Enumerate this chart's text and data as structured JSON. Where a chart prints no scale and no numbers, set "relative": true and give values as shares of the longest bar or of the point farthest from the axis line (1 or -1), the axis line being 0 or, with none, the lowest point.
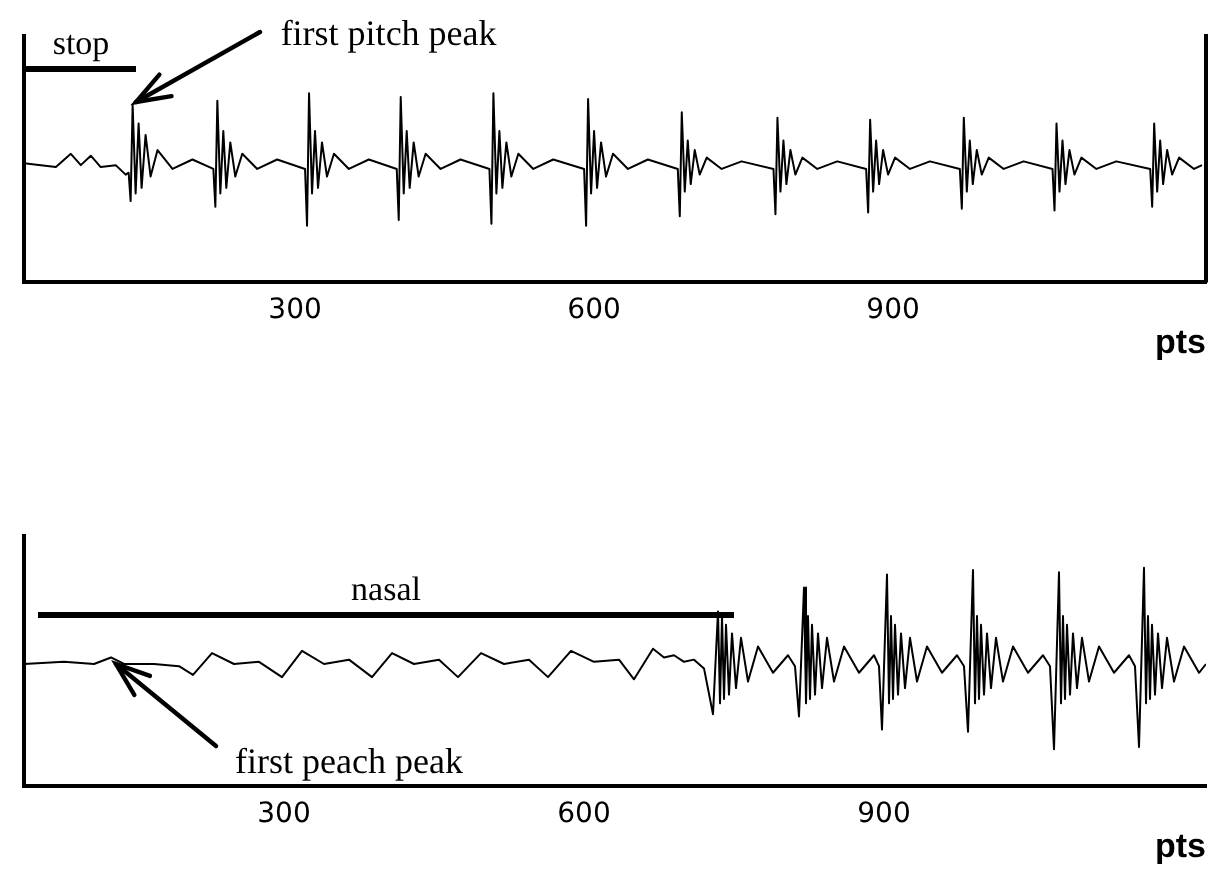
{
  "chart_data": [
    {
      "type": "line",
      "xlabel": "pts",
      "relative": true,
      "xlim": [
        28,
        1214
      ],
      "xticks": [
        300,
        600,
        900
      ],
      "annotations": [
        "stop",
        {
          "text": "first pitch peak",
          "x": 137,
          "y": 0.94
        }
      ],
      "x": [
        28,
        45,
        60,
        75,
        85,
        95,
        105,
        120,
        130,
        133,
        135,
        137,
        140,
        143,
        146,
        150,
        155,
        162,
        177,
        197,
        218,
        220,
        222,
        225,
        228,
        231,
        235,
        240,
        247,
        262,
        282,
        310,
        312,
        314,
        317,
        320,
        323,
        327,
        332,
        339,
        354,
        374,
        402,
        404,
        406,
        409,
        412,
        415,
        419,
        424,
        431,
        446,
        466,
        495,
        497,
        499,
        502,
        505,
        508,
        512,
        517,
        524,
        539,
        559,
        590,
        592,
        594,
        597,
        600,
        603,
        607,
        612,
        619,
        634,
        654,
        684,
        686,
        688,
        691,
        694,
        697,
        701,
        706,
        713,
        728,
        748,
        780,
        782,
        784,
        787,
        790,
        793,
        797,
        802,
        809,
        824,
        844,
        873,
        875,
        877,
        880,
        883,
        886,
        890,
        895,
        902,
        917,
        937,
        967,
        969,
        971,
        974,
        977,
        980,
        984,
        989,
        996,
        1011,
        1031,
        1060,
        1062,
        1064,
        1067,
        1070,
        1073,
        1077,
        1082,
        1089,
        1104,
        1124,
        1158,
        1160,
        1162,
        1165,
        1168,
        1171,
        1175,
        1180,
        1187,
        1202,
        1210
      ],
      "series": [
        {
          "color": "#000000",
          "values": [
            0.63,
            0.62,
            0.61,
            0.68,
            0.62,
            0.67,
            0.61,
            0.62,
            0.57,
            0.58,
            0.43,
            0.94,
            0.47,
            0.84,
            0.5,
            0.78,
            0.56,
            0.7,
            0.6,
            0.65,
            0.6,
            0.4,
            0.96,
            0.47,
            0.8,
            0.5,
            0.74,
            0.56,
            0.68,
            0.6,
            0.65,
            0.6,
            0.3,
            1.0,
            0.47,
            0.8,
            0.5,
            0.74,
            0.56,
            0.68,
            0.6,
            0.65,
            0.6,
            0.33,
            0.98,
            0.47,
            0.8,
            0.5,
            0.74,
            0.56,
            0.68,
            0.6,
            0.65,
            0.6,
            0.31,
            1.0,
            0.47,
            0.8,
            0.5,
            0.74,
            0.56,
            0.68,
            0.6,
            0.65,
            0.6,
            0.3,
            0.97,
            0.47,
            0.8,
            0.5,
            0.74,
            0.56,
            0.68,
            0.6,
            0.65,
            0.6,
            0.35,
            0.9,
            0.48,
            0.75,
            0.52,
            0.7,
            0.57,
            0.66,
            0.6,
            0.64,
            0.6,
            0.36,
            0.87,
            0.48,
            0.75,
            0.52,
            0.7,
            0.57,
            0.66,
            0.6,
            0.64,
            0.6,
            0.37,
            0.86,
            0.48,
            0.75,
            0.52,
            0.7,
            0.57,
            0.66,
            0.6,
            0.64,
            0.6,
            0.39,
            0.87,
            0.48,
            0.75,
            0.52,
            0.7,
            0.57,
            0.66,
            0.6,
            0.64,
            0.6,
            0.38,
            0.84,
            0.48,
            0.75,
            0.52,
            0.7,
            0.57,
            0.66,
            0.6,
            0.64,
            0.6,
            0.4,
            0.84,
            0.48,
            0.75,
            0.52,
            0.7,
            0.57,
            0.66,
            0.6,
            0.62
          ]
        }
      ]
    },
    {
      "type": "line",
      "xlabel": "pts",
      "relative": true,
      "xlim": [
        40,
        1222
      ],
      "xticks": [
        300,
        600,
        900
      ],
      "annotations": [
        "nasal",
        {
          "text": "first peach peak",
          "x": 127,
          "y": 0.59
        }
      ],
      "x": [
        40,
        80,
        110,
        127,
        140,
        170,
        195,
        209,
        228,
        250,
        275,
        298,
        318,
        340,
        365,
        388,
        408,
        430,
        455,
        474,
        497,
        520,
        545,
        564,
        587,
        610,
        635,
        650,
        669,
        680,
        690,
        700,
        710,
        720,
        729,
        734,
        736,
        738,
        740,
        742,
        745,
        748,
        752,
        757,
        764,
        774,
        789,
        804,
        811,
        815,
        820,
        822,
        824,
        826,
        828,
        831,
        834,
        838,
        843,
        850,
        860,
        875,
        890,
        895,
        898,
        903,
        905,
        907,
        909,
        911,
        914,
        917,
        921,
        926,
        933,
        943,
        958,
        973,
        980,
        984,
        989,
        991,
        993,
        995,
        997,
        1000,
        1003,
        1007,
        1012,
        1019,
        1029,
        1044,
        1059,
        1066,
        1070,
        1075,
        1077,
        1079,
        1081,
        1083,
        1086,
        1089,
        1093,
        1098,
        1105,
        1115,
        1130,
        1145,
        1151,
        1155,
        1160,
        1162,
        1164,
        1166,
        1168,
        1171,
        1174,
        1178,
        1183,
        1190,
        1200,
        1215,
        1222
      ],
      "series": [
        {
          "color": "#000000",
          "values": [
            0.56,
            0.57,
            0.56,
            0.59,
            0.56,
            0.56,
            0.55,
            0.51,
            0.61,
            0.56,
            0.57,
            0.5,
            0.62,
            0.56,
            0.58,
            0.5,
            0.61,
            0.56,
            0.58,
            0.5,
            0.61,
            0.56,
            0.58,
            0.5,
            0.62,
            0.57,
            0.58,
            0.49,
            0.63,
            0.59,
            0.6,
            0.57,
            0.58,
            0.54,
            0.33,
            0.8,
            0.38,
            0.78,
            0.4,
            0.74,
            0.42,
            0.7,
            0.45,
            0.68,
            0.48,
            0.64,
            0.52,
            0.6,
            0.55,
            0.32,
            0.91,
            0.38,
            0.78,
            0.4,
            0.74,
            0.42,
            0.7,
            0.45,
            0.68,
            0.48,
            0.64,
            0.52,
            0.6,
            0.55,
            0.26,
            0.97,
            0.38,
            0.78,
            0.4,
            0.74,
            0.42,
            0.7,
            0.45,
            0.68,
            0.48,
            0.64,
            0.52,
            0.6,
            0.55,
            0.25,
            0.99,
            0.38,
            0.78,
            0.4,
            0.74,
            0.42,
            0.7,
            0.45,
            0.68,
            0.48,
            0.64,
            0.52,
            0.6,
            0.55,
            0.17,
            0.98,
            0.38,
            0.78,
            0.4,
            0.74,
            0.42,
            0.7,
            0.45,
            0.68,
            0.48,
            0.64,
            0.52,
            0.6,
            0.55,
            0.18,
            1.0,
            0.38,
            0.78,
            0.4,
            0.74,
            0.42,
            0.7,
            0.45,
            0.68,
            0.48,
            0.64,
            0.52,
            0.56
          ]
        }
      ]
    }
  ]
}
